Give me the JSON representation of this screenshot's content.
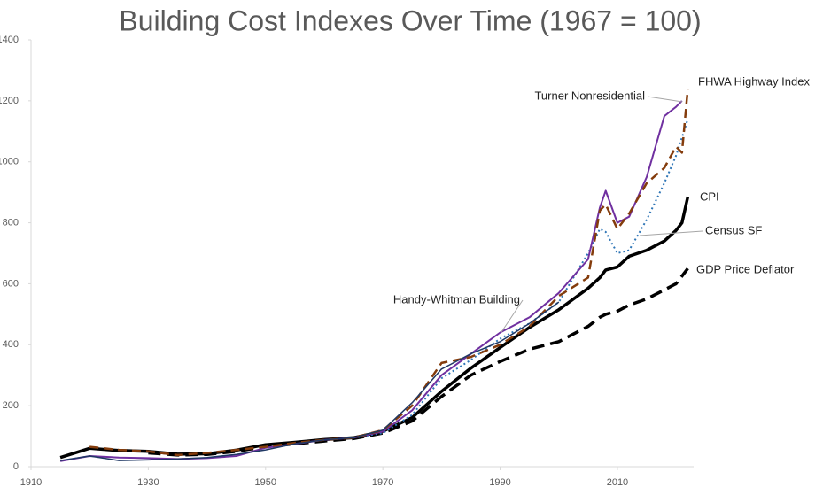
{
  "chart_data": {
    "type": "line",
    "title": "Building Cost Indexes Over Time (1967 = 100)",
    "x": [
      1915,
      1920,
      1925,
      1930,
      1935,
      1940,
      1945,
      1950,
      1955,
      1960,
      1965,
      1970,
      1975,
      1980,
      1985,
      1990,
      1995,
      2000,
      2005,
      2007,
      2008,
      2010,
      2012,
      2015,
      2018,
      2020,
      2021,
      2022
    ],
    "xlim": [
      1910,
      2023
    ],
    "xticks": [
      1910,
      1930,
      1950,
      1970,
      1990,
      2010
    ],
    "ylim": [
      0,
      1400
    ],
    "yticks": [
      0,
      200,
      400,
      600,
      800,
      1000,
      1200,
      1400
    ],
    "grid": false,
    "series": [
      {
        "name": "CPI",
        "color": "#000000",
        "style": "solid",
        "width": 3.5,
        "values": [
          30,
          60,
          53,
          50,
          41,
          42,
          54,
          72,
          80,
          89,
          95,
          116,
          161,
          247,
          323,
          391,
          457,
          515,
          585,
          620,
          645,
          655,
          690,
          710,
          740,
          775,
          800,
          885
        ]
      },
      {
        "name": "GDP Price Deflator",
        "color": "#000000",
        "style": "dashed",
        "width": 3.5,
        "values": [
          null,
          null,
          null,
          45,
          38,
          40,
          50,
          66,
          75,
          84,
          92,
          110,
          150,
          230,
          300,
          345,
          385,
          410,
          460,
          490,
          500,
          510,
          530,
          550,
          580,
          600,
          625,
          650
        ]
      },
      {
        "name": "Census SF",
        "color": "#2e75b6",
        "style": "dotted",
        "width": 2,
        "values": [
          null,
          null,
          null,
          null,
          null,
          null,
          null,
          null,
          null,
          null,
          95,
          110,
          170,
          290,
          350,
          420,
          470,
          540,
          700,
          780,
          770,
          700,
          710,
          810,
          930,
          1020,
          1080,
          1140
        ]
      },
      {
        "name": "Turner Nonresidential",
        "color": "#7030a0",
        "style": "solid",
        "width": 2,
        "values": [
          18,
          35,
          30,
          28,
          25,
          28,
          35,
          62,
          75,
          88,
          95,
          115,
          185,
          300,
          370,
          440,
          490,
          570,
          680,
          850,
          905,
          800,
          820,
          950,
          1150,
          1180,
          1200,
          null
        ]
      },
      {
        "name": "FHWA Highway Index",
        "color": "#843c0c",
        "style": "longdash",
        "width": 2.5,
        "values": [
          null,
          65,
          55,
          50,
          38,
          45,
          55,
          65,
          78,
          88,
          95,
          120,
          200,
          340,
          360,
          400,
          460,
          560,
          620,
          840,
          860,
          780,
          830,
          930,
          980,
          1050,
          1030,
          1240
        ]
      },
      {
        "name": "Handy-Whitman Building",
        "color": "#1f3864",
        "style": "solid",
        "width": 1.5,
        "values": [
          20,
          35,
          20,
          22,
          25,
          30,
          40,
          55,
          75,
          88,
          95,
          120,
          210,
          320,
          370,
          410,
          470,
          540,
          null,
          null,
          null,
          null,
          null,
          null,
          null,
          null,
          null,
          null
        ]
      }
    ]
  }
}
